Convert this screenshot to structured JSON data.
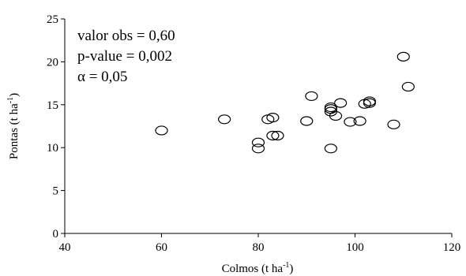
{
  "chart_data": {
    "type": "scatter",
    "title": "",
    "xlabel": "Colmos (t ha",
    "xlabel_sup": "-1",
    "xlabel_close": ")",
    "ylabel": "Pontas (t ha",
    "ylabel_sup": "-1",
    "ylabel_close": ")",
    "xlim": [
      40,
      120
    ],
    "ylim": [
      0,
      25
    ],
    "x_ticks": [
      40,
      60,
      80,
      100,
      120
    ],
    "y_ticks": [
      0,
      5,
      10,
      15,
      20,
      25
    ],
    "grid": false,
    "marker": "open-circle",
    "annotations": [
      "valor obs = 0,60",
      "p-value = 0,002",
      "α = 0,05"
    ],
    "points": [
      {
        "x": 60,
        "y": 12.0
      },
      {
        "x": 73,
        "y": 13.3
      },
      {
        "x": 80,
        "y": 9.9
      },
      {
        "x": 80,
        "y": 10.6
      },
      {
        "x": 82,
        "y": 13.3
      },
      {
        "x": 83,
        "y": 13.5
      },
      {
        "x": 83,
        "y": 11.4
      },
      {
        "x": 84,
        "y": 11.4
      },
      {
        "x": 90,
        "y": 13.1
      },
      {
        "x": 91,
        "y": 16.0
      },
      {
        "x": 95,
        "y": 9.9
      },
      {
        "x": 95,
        "y": 14.2
      },
      {
        "x": 95,
        "y": 14.5
      },
      {
        "x": 95,
        "y": 14.7
      },
      {
        "x": 96,
        "y": 13.7
      },
      {
        "x": 97,
        "y": 15.2
      },
      {
        "x": 99,
        "y": 13.0
      },
      {
        "x": 101,
        "y": 13.1
      },
      {
        "x": 102,
        "y": 15.1
      },
      {
        "x": 103,
        "y": 15.2
      },
      {
        "x": 103,
        "y": 15.4
      },
      {
        "x": 108,
        "y": 12.7
      },
      {
        "x": 110,
        "y": 20.6
      },
      {
        "x": 111,
        "y": 17.1
      }
    ]
  }
}
